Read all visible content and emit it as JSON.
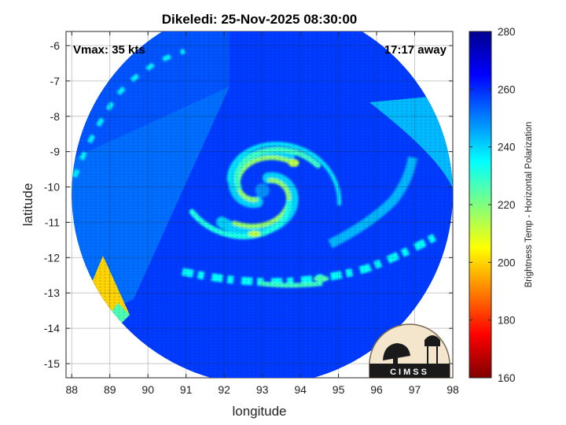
{
  "chart_data": {
    "type": "heatmap",
    "title": "Dikeledi: 25-Nov-2025 08:30:00",
    "xlabel": "longitude",
    "ylabel": "latitude",
    "xlim": [
      87.85,
      98.0
    ],
    "ylim": [
      -15.4,
      -5.6
    ],
    "xticks": [
      88,
      89,
      90,
      91,
      92,
      93,
      94,
      95,
      96,
      97,
      98
    ],
    "yticks": [
      -6,
      -7,
      -8,
      -9,
      -10,
      -11,
      -12,
      -13,
      -14,
      -15
    ],
    "grid": true,
    "annotations": {
      "vmax": "Vmax: 35 kts",
      "time_away": "17:17 away"
    },
    "colorbar": {
      "label": "Brightness Temp - Horizontal Polarization",
      "min": 160,
      "max": 280,
      "ticks": [
        160,
        180,
        200,
        220,
        240,
        260,
        280
      ],
      "colormap": [
        "#7f0000",
        "#ff0000",
        "#ff8000",
        "#ffff00",
        "#80ff80",
        "#00ffff",
        "#0080ff",
        "#0000ff",
        "#00008f"
      ]
    },
    "field": {
      "background_temp": 258,
      "storm_center": [
        93.0,
        -10.1
      ],
      "scan_center": [
        93.0,
        -10.2
      ],
      "scan_radius_deg": 5.0,
      "spiral_band_temp": 218,
      "eye_wall_temp": 213,
      "outer_band_temp": 235,
      "warm_wedge_temp": 200
    }
  },
  "logo": {
    "text": "CIMSS"
  }
}
